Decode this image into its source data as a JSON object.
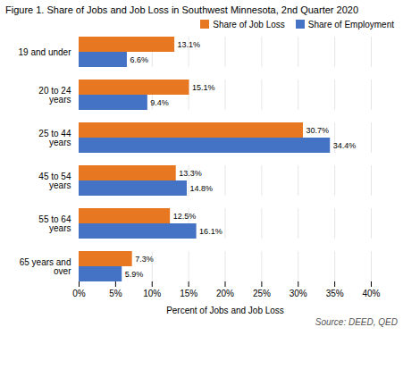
{
  "chart_data": {
    "type": "bar",
    "orientation": "horizontal",
    "title": "Figure 1. Share of Jobs and Job Loss in Southwest Minnesota, 2nd Quarter 2020",
    "categories": [
      "19 and under",
      "20 to 24\nyears",
      "25 to 44\nyears",
      "45 to 54\nyears",
      "55 to 64\nyears",
      "65 years and\nover"
    ],
    "series": [
      {
        "name": "Share of Job Loss",
        "color": "#E87722",
        "values": [
          13.1,
          15.1,
          30.7,
          13.3,
          12.5,
          7.3
        ],
        "value_labels": [
          "13.1%",
          "15.1%",
          "30.7%",
          "13.3%",
          "12.5%",
          "7.3%"
        ]
      },
      {
        "name": "Share of Employment",
        "color": "#4472C4",
        "values": [
          6.6,
          9.4,
          34.4,
          14.8,
          16.1,
          5.9
        ],
        "value_labels": [
          "6.6%",
          "9.4%",
          "34.4%",
          "14.8%",
          "16.1%",
          "5.9%"
        ]
      }
    ],
    "xlabel": "Percent of Jobs and Job Loss",
    "xlim": [
      0,
      40
    ],
    "xticks": [
      {
        "value": 0,
        "label": "0%"
      },
      {
        "value": 5,
        "label": "5%"
      },
      {
        "value": 10,
        "label": "10%"
      },
      {
        "value": 15,
        "label": "15%"
      },
      {
        "value": 20,
        "label": "20%"
      },
      {
        "value": 25,
        "label": "25%"
      },
      {
        "value": 30,
        "label": "30%"
      },
      {
        "value": 35,
        "label": "35%"
      },
      {
        "value": 40,
        "label": "40%"
      }
    ],
    "grid": true,
    "legend": "upper right",
    "data_labels": true,
    "source": "Source: DEED, QED"
  }
}
